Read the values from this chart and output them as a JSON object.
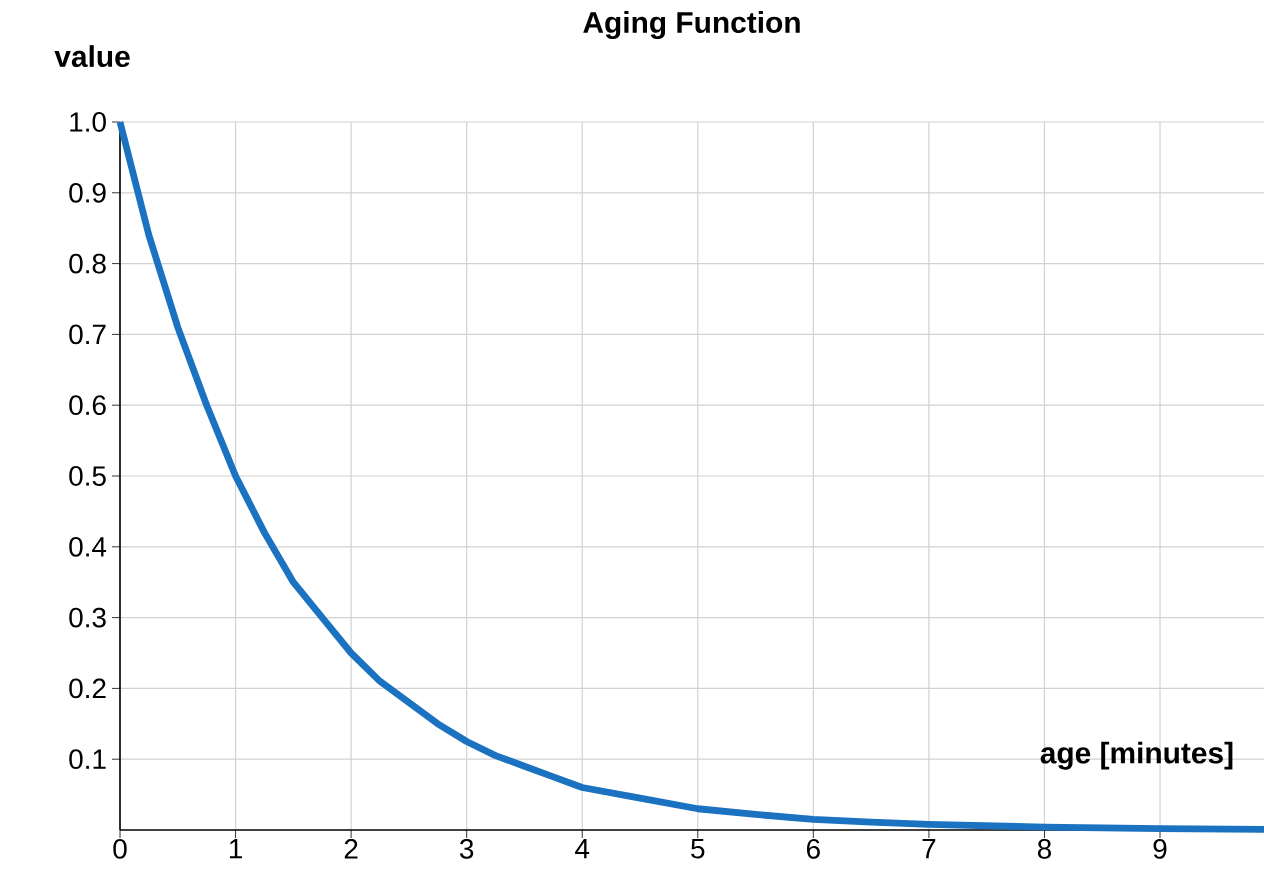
{
  "chart_data": {
    "type": "line",
    "title": "Aging Function",
    "xlabel": "age [minutes]",
    "ylabel": "value",
    "x": [
      0,
      0.25,
      0.5,
      0.75,
      1,
      1.25,
      1.5,
      1.75,
      2,
      2.25,
      2.5,
      2.75,
      3,
      3.25,
      3.5,
      3.75,
      4,
      4.5,
      5,
      5.5,
      6,
      6.5,
      7,
      8,
      9,
      9.9
    ],
    "series": [
      {
        "color": "#1a72c0",
        "values": [
          1.0,
          0.84,
          0.71,
          0.6,
          0.5,
          0.42,
          0.35,
          0.3,
          0.25,
          0.21,
          0.18,
          0.15,
          0.125,
          0.105,
          0.09,
          0.075,
          0.06,
          0.045,
          0.03,
          0.022,
          0.015,
          0.011,
          0.008,
          0.004,
          0.002,
          0.001
        ]
      }
    ],
    "xlim": [
      0,
      9.9
    ],
    "ylim": [
      0,
      1.0
    ],
    "xticks": [
      0,
      1,
      2,
      3,
      4,
      5,
      6,
      7,
      8,
      9
    ],
    "yticks": [
      0.1,
      0.2,
      0.3,
      0.4,
      0.5,
      0.6,
      0.7,
      0.8,
      0.9,
      {
        "value": 1,
        "label": "1.0"
      }
    ],
    "grid": true,
    "marker": "none",
    "line_style": "solid"
  }
}
